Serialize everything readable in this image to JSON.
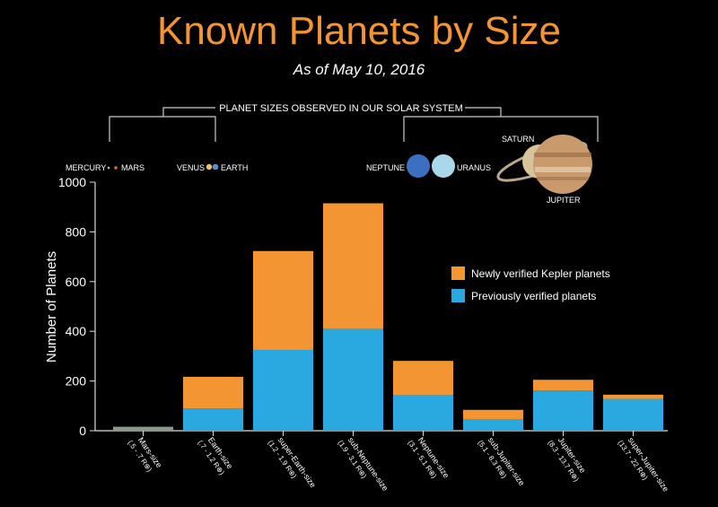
{
  "chart_data": {
    "type": "bar",
    "title": "Known Planets by Size",
    "subtitle": "As of May 10, 2016",
    "ylabel": "Number of Planets",
    "ylim": [
      0,
      1000
    ],
    "yticks": [
      0,
      200,
      400,
      600,
      800,
      1000
    ],
    "categories": [
      {
        "name": "Mars-size",
        "range": "(.5 - .7 R⊕)"
      },
      {
        "name": "Earth-size",
        "range": "(.7 - 1.2 R⊕)"
      },
      {
        "name": "super-Earth-size",
        "range": "(1.2 - 1.9 R⊕)"
      },
      {
        "name": "sub-Neptune-size",
        "range": "(1.9 - 3.1 R⊕)"
      },
      {
        "name": "Neptune-size",
        "range": "(3.1 - 5.1 R⊕)"
      },
      {
        "name": "sub-Jupiter-size",
        "range": "(5.1 - 8.3 R⊕)"
      },
      {
        "name": "Jupiter-size",
        "range": "(8.3 - 13.7 R⊕)"
      },
      {
        "name": "super-Jupiter-size",
        "range": "(13.7 - 22 R⊕)"
      }
    ],
    "series": [
      {
        "name": "Previously verified planets",
        "color": "#2aa8e0",
        "values": [
          16,
          90,
          325,
          410,
          143,
          47,
          162,
          128
        ]
      },
      {
        "name": "Newly verified Kepler planets",
        "color": "#f39533",
        "values": [
          0,
          127,
          398,
          505,
          138,
          37,
          43,
          17
        ]
      }
    ],
    "small_bar_color": "#8a9a8a",
    "legend": [
      "Newly verified Kepler planets",
      "Previously verified planets"
    ],
    "legend_position": "right",
    "solar_system": {
      "header": "PLANET SIZES OBSERVED IN OUR SOLAR SYSTEM",
      "mercury": "MERCURY",
      "mars": "MARS",
      "venus": "VENUS",
      "earth": "EARTH",
      "neptune": "NEPTUNE",
      "uranus": "URANUS",
      "saturn": "SATURN",
      "jupiter": "JUPITER"
    }
  }
}
